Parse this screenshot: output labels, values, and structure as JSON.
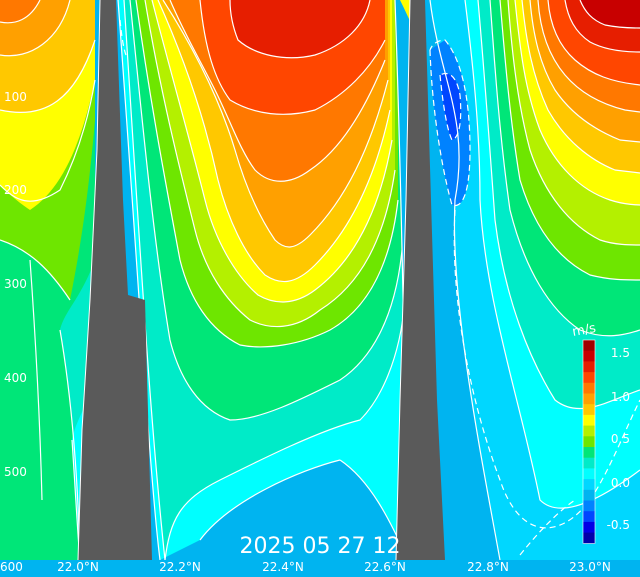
{
  "figure": {
    "title": "2025 05 27 12",
    "xaxis_labels": [
      "22.0°N",
      "22.2°N",
      "22.4°N",
      "22.6°N",
      "22.8°N",
      "23.0°N"
    ],
    "yaxis_labels": [
      "100",
      "200",
      "300",
      "400",
      "500",
      "600"
    ],
    "colorbar": {
      "unit": "m/s",
      "tick_labels": [
        "1.5",
        "1.0",
        "0.5",
        "0.0",
        "-0.5"
      ],
      "colors": [
        "#a00000",
        "#c80000",
        "#e61e00",
        "#ff4600",
        "#ff7800",
        "#ffa000",
        "#ffc800",
        "#ffff00",
        "#b4f000",
        "#6ee600",
        "#00e678",
        "#00ebc8",
        "#00ffff",
        "#00d7ff",
        "#00b4f0",
        "#0082ff",
        "#0046ff",
        "#0000e6",
        "#0000aa"
      ]
    }
  }
}
